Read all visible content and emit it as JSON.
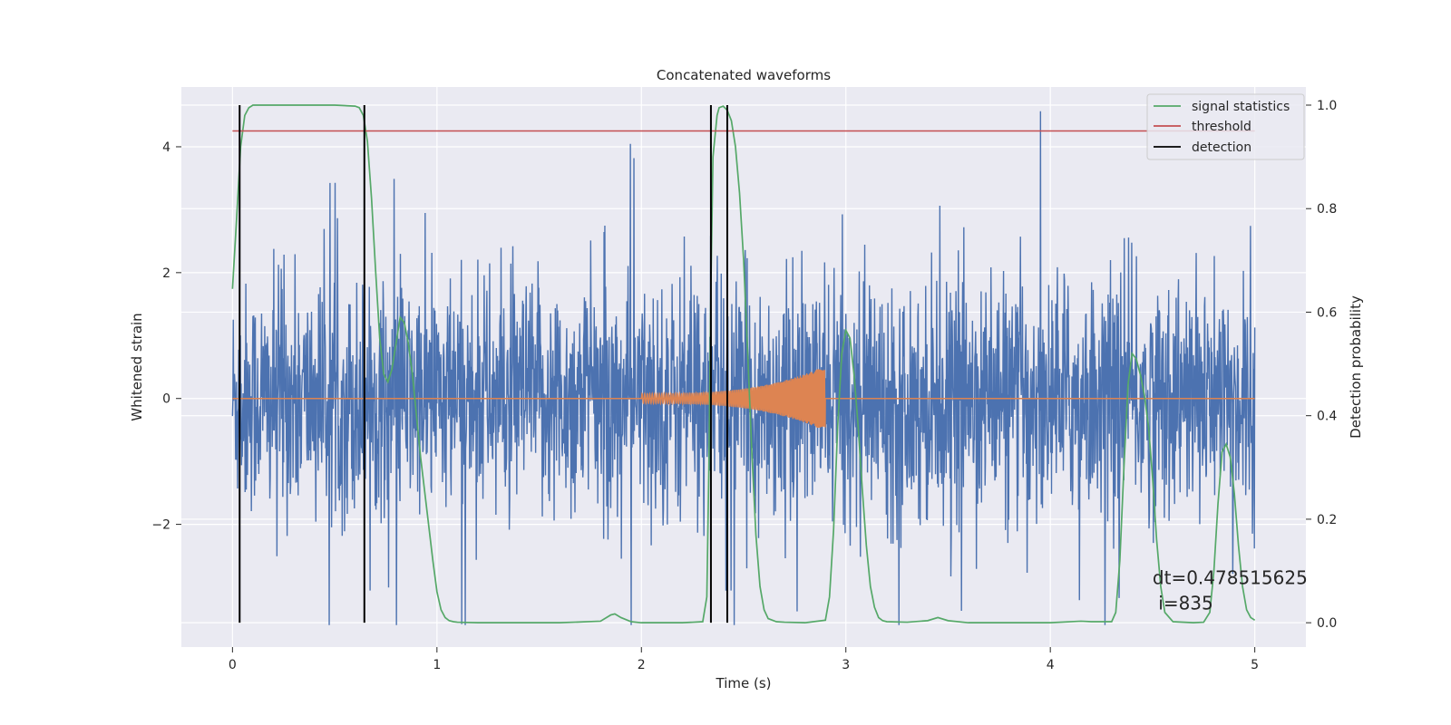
{
  "chart_data": {
    "type": "line",
    "title": "Concatenated waveforms",
    "xlabel": "Time (s)",
    "ylabel_left": "Whitened strain",
    "ylabel_right": "Detection probability",
    "xlim": [
      -0.25,
      5.25
    ],
    "ylim_left": [
      -3.95,
      4.95
    ],
    "ylim_right": [
      -0.047,
      1.035
    ],
    "xticks": [
      0,
      1,
      2,
      3,
      4,
      5
    ],
    "yticks_left": [
      -2,
      0,
      2,
      4
    ],
    "yticks_right": [
      0.0,
      0.2,
      0.4,
      0.6,
      0.8,
      1.0
    ],
    "grid": true,
    "legend_position": "top-right",
    "legend": [
      {
        "name": "signal statistics",
        "color": "#55a868"
      },
      {
        "name": "threshold",
        "color": "#c44e52"
      },
      {
        "name": "detection",
        "color": "#000000"
      }
    ],
    "colors": {
      "noise": "#4c72b0",
      "injection": "#dd8452",
      "signal_statistics": "#55a868",
      "threshold": "#c44e52",
      "detection": "#000000",
      "background": "#eaeaf2"
    },
    "noise": {
      "x_range": [
        0,
        5
      ],
      "amplitude_typical": 1.5,
      "peak_max": 4.6,
      "peak_min": -3.6
    },
    "injection": {
      "x_start": 2.0,
      "x_end": 2.9,
      "start_amplitude": 0.08,
      "peak_amplitude": 0.52
    },
    "signal_statistics": {
      "x": [
        0.0,
        0.02,
        0.04,
        0.06,
        0.08,
        0.1,
        0.15,
        0.2,
        0.3,
        0.4,
        0.5,
        0.6,
        0.62,
        0.64,
        0.66,
        0.68,
        0.7,
        0.72,
        0.74,
        0.76,
        0.78,
        0.8,
        0.82,
        0.84,
        0.86,
        0.88,
        0.9,
        0.92,
        0.95,
        0.98,
        1.0,
        1.02,
        1.04,
        1.06,
        1.08,
        1.1,
        1.2,
        1.4,
        1.6,
        1.8,
        1.85,
        1.87,
        1.9,
        1.95,
        2.0,
        2.2,
        2.3,
        2.32,
        2.33,
        2.34,
        2.35,
        2.37,
        2.38,
        2.4,
        2.42,
        2.44,
        2.46,
        2.48,
        2.5,
        2.52,
        2.54,
        2.56,
        2.58,
        2.6,
        2.62,
        2.66,
        2.7,
        2.8,
        2.9,
        2.92,
        2.94,
        2.96,
        2.98,
        3.0,
        3.02,
        3.04,
        3.06,
        3.08,
        3.1,
        3.12,
        3.14,
        3.16,
        3.18,
        3.2,
        3.3,
        3.4,
        3.45,
        3.5,
        3.6,
        3.8,
        4.0,
        4.15,
        4.2,
        4.3,
        4.32,
        4.34,
        4.36,
        4.38,
        4.4,
        4.42,
        4.44,
        4.46,
        4.48,
        4.5,
        4.52,
        4.54,
        4.56,
        4.6,
        4.7,
        4.75,
        4.78,
        4.8,
        4.82,
        4.84,
        4.86,
        4.88,
        4.9,
        4.92,
        4.94,
        4.96,
        4.98,
        5.0
      ],
      "y": [
        0.645,
        0.78,
        0.92,
        0.98,
        0.995,
        1.0,
        1.0,
        1.0,
        1.0,
        1.0,
        1.0,
        0.998,
        0.995,
        0.98,
        0.93,
        0.82,
        0.68,
        0.55,
        0.48,
        0.465,
        0.49,
        0.54,
        0.59,
        0.58,
        0.54,
        0.48,
        0.4,
        0.32,
        0.22,
        0.12,
        0.06,
        0.025,
        0.01,
        0.004,
        0.002,
        0.001,
        0.0,
        0.0,
        0.0,
        0.003,
        0.015,
        0.017,
        0.01,
        0.002,
        0.0,
        0.0,
        0.002,
        0.05,
        0.3,
        0.65,
        0.9,
        0.98,
        0.995,
        0.998,
        0.99,
        0.97,
        0.92,
        0.83,
        0.7,
        0.52,
        0.33,
        0.17,
        0.07,
        0.025,
        0.008,
        0.002,
        0.001,
        0.0,
        0.005,
        0.05,
        0.18,
        0.38,
        0.52,
        0.565,
        0.55,
        0.48,
        0.38,
        0.26,
        0.15,
        0.07,
        0.03,
        0.01,
        0.004,
        0.002,
        0.001,
        0.004,
        0.01,
        0.004,
        0.0,
        0.0,
        0.0,
        0.003,
        0.002,
        0.002,
        0.02,
        0.12,
        0.3,
        0.46,
        0.52,
        0.51,
        0.48,
        0.44,
        0.38,
        0.28,
        0.16,
        0.07,
        0.02,
        0.002,
        0.0,
        0.001,
        0.02,
        0.1,
        0.23,
        0.33,
        0.345,
        0.32,
        0.25,
        0.15,
        0.07,
        0.025,
        0.01,
        0.005
      ]
    },
    "threshold": {
      "value": 0.95,
      "x_range": [
        0,
        5
      ]
    },
    "detections": [
      0.035,
      0.645,
      2.34,
      2.42
    ],
    "annotation": {
      "text": "dt=0.478515625\n i=835",
      "x": 4.5,
      "y": -2.95
    }
  }
}
